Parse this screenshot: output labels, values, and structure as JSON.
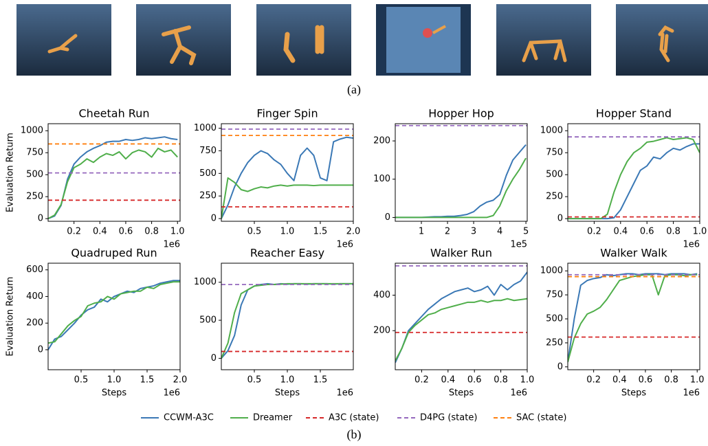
{
  "figure": {
    "panel_a_label": "(a)",
    "panel_b_label": "(b)"
  },
  "chart_data": [
    {
      "type": "line",
      "title": "Cheetah Run",
      "ylabel": "Evaluation Return",
      "x_offset_label": "1e6",
      "xlim": [
        0,
        1.02
      ],
      "ylim": [
        -30,
        1080
      ],
      "xticks": [
        0.2,
        0.4,
        0.6,
        0.8,
        {
          "value": 1,
          "label": "1.0"
        }
      ],
      "yticks": [
        0,
        250,
        500,
        750,
        1000
      ],
      "x": [
        0,
        0.05,
        0.1,
        0.15,
        0.2,
        0.25,
        0.3,
        0.35,
        0.4,
        0.45,
        0.5,
        0.55,
        0.6,
        0.65,
        0.7,
        0.75,
        0.8,
        0.85,
        0.9,
        0.95,
        1.0
      ],
      "series": [
        {
          "name": "CCWM-A3C",
          "color": "#3a78b5",
          "values": [
            0,
            30,
            150,
            450,
            620,
            700,
            760,
            800,
            830,
            870,
            880,
            880,
            900,
            890,
            900,
            920,
            910,
            920,
            930,
            910,
            900
          ]
        },
        {
          "name": "Dreamer",
          "color": "#4fae4a",
          "values": [
            0,
            40,
            160,
            420,
            580,
            620,
            680,
            640,
            700,
            740,
            720,
            760,
            680,
            750,
            780,
            760,
            700,
            800,
            760,
            780,
            700
          ]
        },
        {
          "name": "A3C (state)",
          "color": "#d62728",
          "style": "dashed",
          "value": 210
        },
        {
          "name": "D4PG (state)",
          "color": "#9467bd",
          "style": "dashed",
          "value": 520
        },
        {
          "name": "SAC (state)",
          "color": "#ff7f0e",
          "style": "dashed",
          "value": 850
        }
      ]
    },
    {
      "type": "line",
      "title": "Finger Spin",
      "x_offset_label": "1e6",
      "xlim": [
        0,
        2.0
      ],
      "ylim": [
        -30,
        1050
      ],
      "xticks": [
        0.5,
        {
          "value": 1,
          "label": "1.0"
        },
        1.5,
        {
          "value": 2,
          "label": "2.0"
        }
      ],
      "yticks": [
        0,
        250,
        500,
        750,
        1000
      ],
      "x": [
        0,
        0.1,
        0.2,
        0.3,
        0.4,
        0.5,
        0.6,
        0.7,
        0.8,
        0.9,
        1.0,
        1.1,
        1.2,
        1.3,
        1.4,
        1.5,
        1.6,
        1.7,
        1.8,
        1.9,
        2.0
      ],
      "series": [
        {
          "name": "CCWM-A3C",
          "color": "#3a78b5",
          "values": [
            0,
            150,
            350,
            500,
            620,
            700,
            750,
            720,
            650,
            600,
            500,
            420,
            700,
            780,
            700,
            450,
            420,
            850,
            880,
            900,
            890
          ]
        },
        {
          "name": "Dreamer",
          "color": "#4fae4a",
          "values": [
            0,
            450,
            400,
            320,
            300,
            330,
            350,
            340,
            360,
            370,
            360,
            370,
            370,
            370,
            365,
            370,
            370,
            370,
            370,
            370,
            370
          ]
        },
        {
          "name": "A3C (state)",
          "color": "#d62728",
          "style": "dashed",
          "value": 130
        },
        {
          "name": "D4PG (state)",
          "color": "#9467bd",
          "style": "dashed",
          "value": 990
        },
        {
          "name": "SAC (state)",
          "color": "#ff7f0e",
          "style": "dashed",
          "value": 920
        }
      ]
    },
    {
      "type": "line",
      "title": "Hopper Hop",
      "x_offset_label": "1e5",
      "xlim": [
        0,
        5.05
      ],
      "ylim": [
        -10,
        245
      ],
      "xticks": [
        1,
        2,
        3,
        4,
        5
      ],
      "yticks": [
        0,
        100,
        200
      ],
      "x": [
        0,
        0.25,
        0.5,
        0.75,
        1,
        1.25,
        1.5,
        1.75,
        2,
        2.25,
        2.5,
        2.75,
        3,
        3.25,
        3.5,
        3.75,
        4,
        4.25,
        4.5,
        4.75,
        5
      ],
      "series": [
        {
          "name": "CCWM-A3C",
          "color": "#3a78b5",
          "values": [
            0,
            0,
            0,
            0,
            0,
            1,
            2,
            2,
            3,
            3,
            5,
            8,
            15,
            30,
            40,
            45,
            60,
            110,
            150,
            170,
            190
          ]
        },
        {
          "name": "Dreamer",
          "color": "#4fae4a",
          "values": [
            0,
            0,
            0,
            0,
            0,
            0,
            0,
            0,
            0,
            0,
            0,
            0,
            0,
            0,
            0,
            5,
            30,
            70,
            100,
            125,
            155
          ]
        },
        {
          "name": "D4PG (state)",
          "color": "#9467bd",
          "style": "dashed",
          "value": 240
        }
      ]
    },
    {
      "type": "line",
      "title": "Hopper Stand",
      "x_offset_label": "1e6",
      "xlim": [
        0,
        1.0
      ],
      "ylim": [
        -30,
        1080
      ],
      "xticks": [
        0.2,
        0.4,
        0.6,
        0.8,
        {
          "value": 1,
          "label": "1.0"
        }
      ],
      "yticks": [
        0,
        250,
        500,
        750,
        1000
      ],
      "x": [
        0,
        0.05,
        0.1,
        0.15,
        0.2,
        0.25,
        0.3,
        0.35,
        0.4,
        0.45,
        0.5,
        0.55,
        0.6,
        0.65,
        0.7,
        0.75,
        0.8,
        0.85,
        0.9,
        0.95,
        1.0
      ],
      "series": [
        {
          "name": "CCWM-A3C",
          "color": "#3a78b5",
          "values": [
            0,
            0,
            0,
            0,
            0,
            0,
            0,
            10,
            100,
            250,
            400,
            550,
            600,
            700,
            680,
            750,
            800,
            780,
            820,
            850,
            850
          ]
        },
        {
          "name": "Dreamer",
          "color": "#4fae4a",
          "values": [
            0,
            0,
            0,
            0,
            0,
            0,
            50,
            300,
            500,
            650,
            750,
            800,
            870,
            880,
            900,
            920,
            900,
            910,
            920,
            900,
            750
          ]
        },
        {
          "name": "A3C (state)",
          "color": "#d62728",
          "style": "dashed",
          "value": 20
        },
        {
          "name": "D4PG (state)",
          "color": "#9467bd",
          "style": "dashed",
          "value": 930
        }
      ]
    },
    {
      "type": "line",
      "title": "Quadruped Run",
      "ylabel": "Evaluation Return",
      "xlabel": "Steps",
      "x_offset_label": "1e6",
      "xlim": [
        0,
        2.0
      ],
      "ylim": [
        -150,
        650
      ],
      "xticks": [
        0.5,
        {
          "value": 1,
          "label": "1.0"
        },
        1.5,
        {
          "value": 2,
          "label": "2.0"
        }
      ],
      "yticks": [
        0,
        200,
        400,
        600
      ],
      "x": [
        0,
        0.1,
        0.2,
        0.3,
        0.4,
        0.5,
        0.6,
        0.7,
        0.8,
        0.9,
        1.0,
        1.1,
        1.2,
        1.3,
        1.4,
        1.5,
        1.6,
        1.7,
        1.8,
        1.9,
        2.0
      ],
      "series": [
        {
          "name": "CCWM-A3C",
          "color": "#3a78b5",
          "values": [
            0,
            80,
            100,
            150,
            200,
            260,
            300,
            320,
            380,
            360,
            400,
            420,
            440,
            430,
            460,
            470,
            480,
            500,
            510,
            520,
            520
          ]
        },
        {
          "name": "Dreamer",
          "color": "#4fae4a",
          "values": [
            50,
            60,
            120,
            180,
            220,
            250,
            330,
            350,
            360,
            400,
            380,
            420,
            430,
            440,
            440,
            470,
            460,
            490,
            500,
            510,
            510
          ]
        }
      ]
    },
    {
      "type": "line",
      "title": "Reacher Easy",
      "xlabel": "Steps",
      "x_offset_label": "1e6",
      "xlim": [
        0,
        2.0
      ],
      "ylim": [
        -150,
        1250
      ],
      "xticks": [
        0.5,
        {
          "value": 1,
          "label": "1.0"
        },
        1.5
      ],
      "yticks": [
        0,
        500,
        1000
      ],
      "x": [
        0,
        0.1,
        0.2,
        0.3,
        0.4,
        0.5,
        0.6,
        0.7,
        0.8,
        0.9,
        1.0,
        1.1,
        1.2,
        1.3,
        1.4,
        1.5,
        1.6,
        1.7,
        1.8,
        1.9,
        2.0
      ],
      "series": [
        {
          "name": "CCWM-A3C",
          "color": "#3a78b5",
          "values": [
            0,
            100,
            300,
            700,
            900,
            950,
            970,
            980,
            970,
            980,
            975,
            980,
            980,
            975,
            980,
            980,
            980,
            975,
            980,
            980,
            980
          ]
        },
        {
          "name": "Dreamer",
          "color": "#4fae4a",
          "values": [
            0,
            200,
            600,
            850,
            900,
            950,
            960,
            970,
            970,
            975,
            980,
            980,
            980,
            980,
            980,
            980,
            980,
            980,
            980,
            980,
            980
          ]
        },
        {
          "name": "A3C (state)",
          "color": "#d62728",
          "style": "dashed",
          "value": 90
        },
        {
          "name": "D4PG (state)",
          "color": "#9467bd",
          "style": "dashed",
          "value": 970
        }
      ]
    },
    {
      "type": "line",
      "title": "Walker Run",
      "xlabel": "Steps",
      "x_offset_label": "1e6",
      "xlim": [
        0,
        1.0
      ],
      "ylim": [
        -20,
        580
      ],
      "xticks": [
        0.2,
        0.4,
        0.6,
        0.8,
        {
          "value": 1,
          "label": "1.0"
        }
      ],
      "yticks": [
        200,
        400
      ],
      "x": [
        0,
        0.05,
        0.1,
        0.15,
        0.2,
        0.25,
        0.3,
        0.35,
        0.4,
        0.45,
        0.5,
        0.55,
        0.6,
        0.65,
        0.7,
        0.75,
        0.8,
        0.85,
        0.9,
        0.95,
        1.0
      ],
      "series": [
        {
          "name": "CCWM-A3C",
          "color": "#3a78b5",
          "values": [
            20,
            100,
            200,
            240,
            280,
            320,
            350,
            380,
            400,
            420,
            430,
            440,
            420,
            430,
            450,
            400,
            460,
            430,
            460,
            480,
            530
          ]
        },
        {
          "name": "Dreamer",
          "color": "#4fae4a",
          "values": [
            30,
            100,
            190,
            230,
            260,
            290,
            300,
            320,
            330,
            340,
            350,
            360,
            360,
            370,
            360,
            370,
            370,
            380,
            370,
            375,
            380
          ]
        },
        {
          "name": "A3C (state)",
          "color": "#d62728",
          "style": "dashed",
          "value": 190
        },
        {
          "name": "D4PG (state)",
          "color": "#9467bd",
          "style": "dashed",
          "value": 565
        }
      ]
    },
    {
      "type": "line",
      "title": "Walker Walk",
      "xlabel": "Steps",
      "x_offset_label": "1e6",
      "xlim": [
        0,
        1.02
      ],
      "ylim": [
        -30,
        1080
      ],
      "xticks": [
        0.2,
        0.4,
        0.6,
        0.8,
        {
          "value": 1,
          "label": "1.0"
        }
      ],
      "yticks": [
        0,
        250,
        500,
        750,
        1000
      ],
      "x": [
        0,
        0.05,
        0.1,
        0.15,
        0.2,
        0.25,
        0.3,
        0.35,
        0.4,
        0.45,
        0.5,
        0.55,
        0.6,
        0.65,
        0.7,
        0.75,
        0.8,
        0.85,
        0.9,
        0.95,
        1.0
      ],
      "series": [
        {
          "name": "CCWM-A3C",
          "color": "#3a78b5",
          "values": [
            50,
            500,
            850,
            900,
            920,
            930,
            960,
            950,
            960,
            970,
            970,
            960,
            970,
            970,
            970,
            960,
            970,
            970,
            970,
            960,
            970
          ]
        },
        {
          "name": "Dreamer",
          "color": "#4fae4a",
          "values": [
            50,
            300,
            450,
            550,
            580,
            620,
            700,
            800,
            900,
            920,
            940,
            950,
            960,
            960,
            750,
            950,
            960,
            960,
            950,
            960,
            960
          ]
        },
        {
          "name": "A3C (state)",
          "color": "#d62728",
          "style": "dashed",
          "value": 310
        },
        {
          "name": "D4PG (state)",
          "color": "#9467bd",
          "style": "dashed",
          "value": 960
        },
        {
          "name": "SAC (state)",
          "color": "#ff7f0e",
          "style": "dashed",
          "value": 940
        }
      ]
    }
  ]
}
